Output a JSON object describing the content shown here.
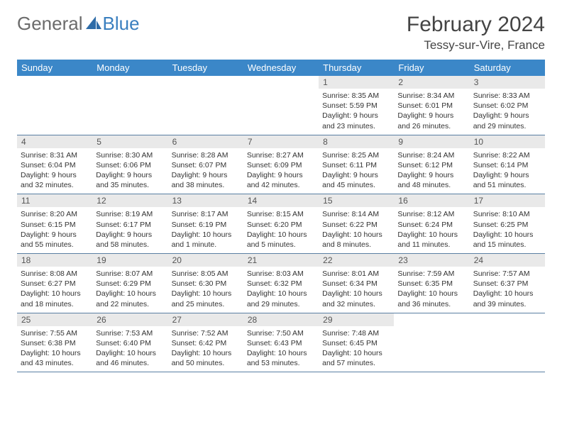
{
  "logo": {
    "text_general": "General",
    "text_blue": "Blue"
  },
  "title": {
    "month": "February 2024",
    "location": "Tessy-sur-Vire, France"
  },
  "style": {
    "page_bg": "#ffffff",
    "header_band_bg": "#3b87c8",
    "header_band_fg": "#ffffff",
    "daynum_bg": "#e9e9e9",
    "daynum_fg": "#555555",
    "body_text": "#333333",
    "week_border": "#5a7fa3",
    "title_fontsize": 30,
    "location_fontsize": 17,
    "weekday_fontsize": 13,
    "daynum_fontsize": 12,
    "body_fontsize": 10.5,
    "logo_fill": "#2e6ca8"
  },
  "weekdays": [
    "Sunday",
    "Monday",
    "Tuesday",
    "Wednesday",
    "Thursday",
    "Friday",
    "Saturday"
  ],
  "weeks": [
    [
      null,
      null,
      null,
      null,
      {
        "n": "1",
        "sunrise": "Sunrise: 8:35 AM",
        "sunset": "Sunset: 5:59 PM",
        "daylight": "Daylight: 9 hours and 23 minutes."
      },
      {
        "n": "2",
        "sunrise": "Sunrise: 8:34 AM",
        "sunset": "Sunset: 6:01 PM",
        "daylight": "Daylight: 9 hours and 26 minutes."
      },
      {
        "n": "3",
        "sunrise": "Sunrise: 8:33 AM",
        "sunset": "Sunset: 6:02 PM",
        "daylight": "Daylight: 9 hours and 29 minutes."
      }
    ],
    [
      {
        "n": "4",
        "sunrise": "Sunrise: 8:31 AM",
        "sunset": "Sunset: 6:04 PM",
        "daylight": "Daylight: 9 hours and 32 minutes."
      },
      {
        "n": "5",
        "sunrise": "Sunrise: 8:30 AM",
        "sunset": "Sunset: 6:06 PM",
        "daylight": "Daylight: 9 hours and 35 minutes."
      },
      {
        "n": "6",
        "sunrise": "Sunrise: 8:28 AM",
        "sunset": "Sunset: 6:07 PM",
        "daylight": "Daylight: 9 hours and 38 minutes."
      },
      {
        "n": "7",
        "sunrise": "Sunrise: 8:27 AM",
        "sunset": "Sunset: 6:09 PM",
        "daylight": "Daylight: 9 hours and 42 minutes."
      },
      {
        "n": "8",
        "sunrise": "Sunrise: 8:25 AM",
        "sunset": "Sunset: 6:11 PM",
        "daylight": "Daylight: 9 hours and 45 minutes."
      },
      {
        "n": "9",
        "sunrise": "Sunrise: 8:24 AM",
        "sunset": "Sunset: 6:12 PM",
        "daylight": "Daylight: 9 hours and 48 minutes."
      },
      {
        "n": "10",
        "sunrise": "Sunrise: 8:22 AM",
        "sunset": "Sunset: 6:14 PM",
        "daylight": "Daylight: 9 hours and 51 minutes."
      }
    ],
    [
      {
        "n": "11",
        "sunrise": "Sunrise: 8:20 AM",
        "sunset": "Sunset: 6:15 PM",
        "daylight": "Daylight: 9 hours and 55 minutes."
      },
      {
        "n": "12",
        "sunrise": "Sunrise: 8:19 AM",
        "sunset": "Sunset: 6:17 PM",
        "daylight": "Daylight: 9 hours and 58 minutes."
      },
      {
        "n": "13",
        "sunrise": "Sunrise: 8:17 AM",
        "sunset": "Sunset: 6:19 PM",
        "daylight": "Daylight: 10 hours and 1 minute."
      },
      {
        "n": "14",
        "sunrise": "Sunrise: 8:15 AM",
        "sunset": "Sunset: 6:20 PM",
        "daylight": "Daylight: 10 hours and 5 minutes."
      },
      {
        "n": "15",
        "sunrise": "Sunrise: 8:14 AM",
        "sunset": "Sunset: 6:22 PM",
        "daylight": "Daylight: 10 hours and 8 minutes."
      },
      {
        "n": "16",
        "sunrise": "Sunrise: 8:12 AM",
        "sunset": "Sunset: 6:24 PM",
        "daylight": "Daylight: 10 hours and 11 minutes."
      },
      {
        "n": "17",
        "sunrise": "Sunrise: 8:10 AM",
        "sunset": "Sunset: 6:25 PM",
        "daylight": "Daylight: 10 hours and 15 minutes."
      }
    ],
    [
      {
        "n": "18",
        "sunrise": "Sunrise: 8:08 AM",
        "sunset": "Sunset: 6:27 PM",
        "daylight": "Daylight: 10 hours and 18 minutes."
      },
      {
        "n": "19",
        "sunrise": "Sunrise: 8:07 AM",
        "sunset": "Sunset: 6:29 PM",
        "daylight": "Daylight: 10 hours and 22 minutes."
      },
      {
        "n": "20",
        "sunrise": "Sunrise: 8:05 AM",
        "sunset": "Sunset: 6:30 PM",
        "daylight": "Daylight: 10 hours and 25 minutes."
      },
      {
        "n": "21",
        "sunrise": "Sunrise: 8:03 AM",
        "sunset": "Sunset: 6:32 PM",
        "daylight": "Daylight: 10 hours and 29 minutes."
      },
      {
        "n": "22",
        "sunrise": "Sunrise: 8:01 AM",
        "sunset": "Sunset: 6:34 PM",
        "daylight": "Daylight: 10 hours and 32 minutes."
      },
      {
        "n": "23",
        "sunrise": "Sunrise: 7:59 AM",
        "sunset": "Sunset: 6:35 PM",
        "daylight": "Daylight: 10 hours and 36 minutes."
      },
      {
        "n": "24",
        "sunrise": "Sunrise: 7:57 AM",
        "sunset": "Sunset: 6:37 PM",
        "daylight": "Daylight: 10 hours and 39 minutes."
      }
    ],
    [
      {
        "n": "25",
        "sunrise": "Sunrise: 7:55 AM",
        "sunset": "Sunset: 6:38 PM",
        "daylight": "Daylight: 10 hours and 43 minutes."
      },
      {
        "n": "26",
        "sunrise": "Sunrise: 7:53 AM",
        "sunset": "Sunset: 6:40 PM",
        "daylight": "Daylight: 10 hours and 46 minutes."
      },
      {
        "n": "27",
        "sunrise": "Sunrise: 7:52 AM",
        "sunset": "Sunset: 6:42 PM",
        "daylight": "Daylight: 10 hours and 50 minutes."
      },
      {
        "n": "28",
        "sunrise": "Sunrise: 7:50 AM",
        "sunset": "Sunset: 6:43 PM",
        "daylight": "Daylight: 10 hours and 53 minutes."
      },
      {
        "n": "29",
        "sunrise": "Sunrise: 7:48 AM",
        "sunset": "Sunset: 6:45 PM",
        "daylight": "Daylight: 10 hours and 57 minutes."
      },
      null,
      null
    ]
  ]
}
